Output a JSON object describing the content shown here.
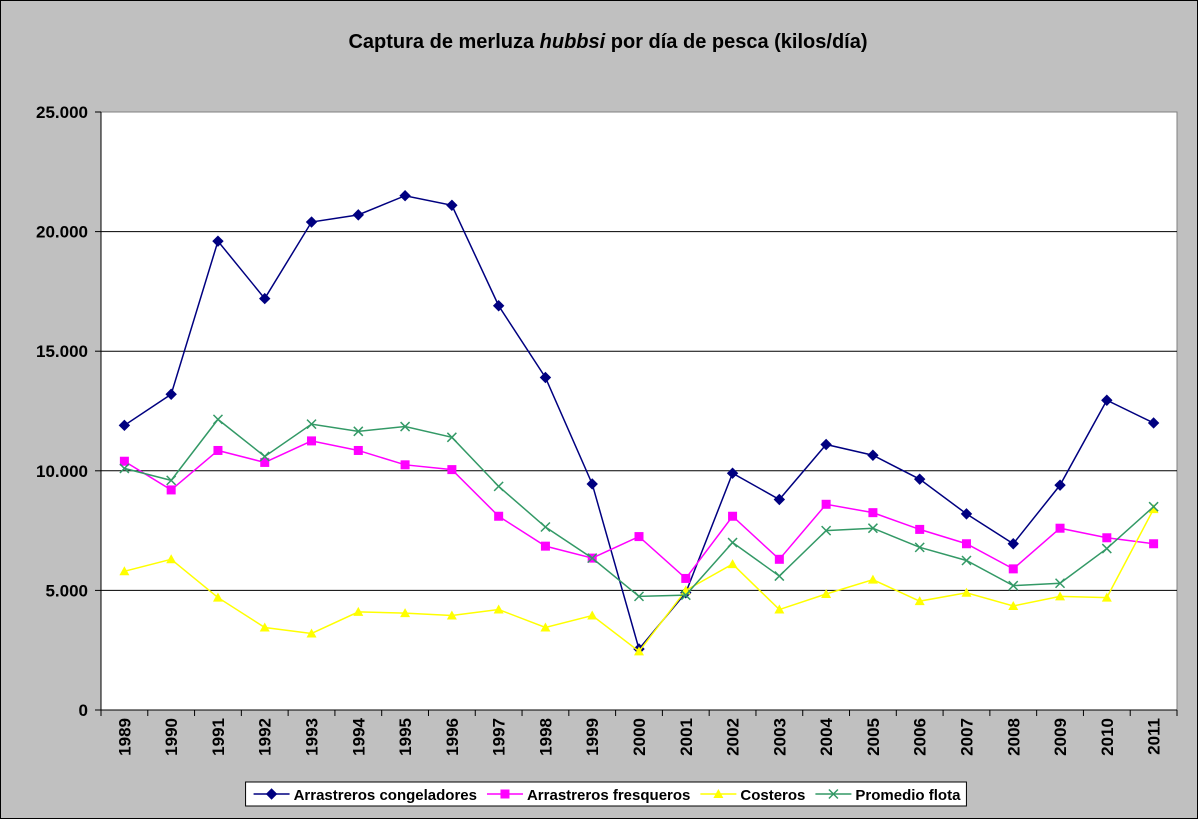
{
  "chart_data": {
    "type": "line",
    "title": [
      "Captura de merluza ",
      "hubbsi",
      " por día de pesca (kilos/día)"
    ],
    "categories": [
      "1989",
      "1990",
      "1991",
      "1992",
      "1993",
      "1994",
      "1995",
      "1996",
      "1997",
      "1998",
      "1999",
      "2000",
      "2001",
      "2002",
      "2003",
      "2004",
      "2005",
      "2006",
      "2007",
      "2008",
      "2009",
      "2010",
      "2011"
    ],
    "series": [
      {
        "name": "Arrastreros congeladores",
        "color": "#000080",
        "marker": "diamond",
        "values": [
          11900,
          13200,
          19600,
          17200,
          20400,
          20700,
          21500,
          21100,
          16900,
          13900,
          9450,
          2550,
          4900,
          9900,
          8800,
          11100,
          10650,
          9650,
          8200,
          6950,
          9400,
          12950,
          12000
        ]
      },
      {
        "name": "Arrastreros fresqueros",
        "color": "#ff00ff",
        "marker": "square",
        "values": [
          10400,
          9200,
          10850,
          10350,
          11250,
          10850,
          10250,
          10050,
          8100,
          6850,
          6350,
          7250,
          5500,
          8100,
          6300,
          8600,
          8250,
          7550,
          6950,
          5900,
          7600,
          7200,
          6950
        ]
      },
      {
        "name": "Costeros",
        "color": "#ffff00",
        "marker": "triangle",
        "values": [
          5800,
          6300,
          4700,
          3450,
          3200,
          4100,
          4050,
          3950,
          4200,
          3450,
          3950,
          2450,
          5000,
          6100,
          4200,
          4850,
          5450,
          4550,
          4900,
          4350,
          4750,
          4700,
          8400
        ]
      },
      {
        "name": "Promedio flota",
        "color": "#339966",
        "marker": "x",
        "values": [
          10100,
          9600,
          12150,
          10600,
          11950,
          11650,
          11850,
          11400,
          9350,
          7650,
          6350,
          4750,
          4800,
          7000,
          5600,
          7500,
          7600,
          6800,
          6250,
          5200,
          5300,
          6750,
          8500
        ]
      }
    ],
    "ylim": [
      0,
      25000
    ],
    "yticks": [
      0,
      {
        "value": 5000,
        "label": "5.000"
      },
      {
        "value": 10000,
        "label": "10.000"
      },
      {
        "value": 15000,
        "label": "15.000"
      },
      {
        "value": 20000,
        "label": "20.000"
      },
      {
        "value": 25000,
        "label": "25.000"
      }
    ],
    "grid": true,
    "legend": "bottom"
  }
}
